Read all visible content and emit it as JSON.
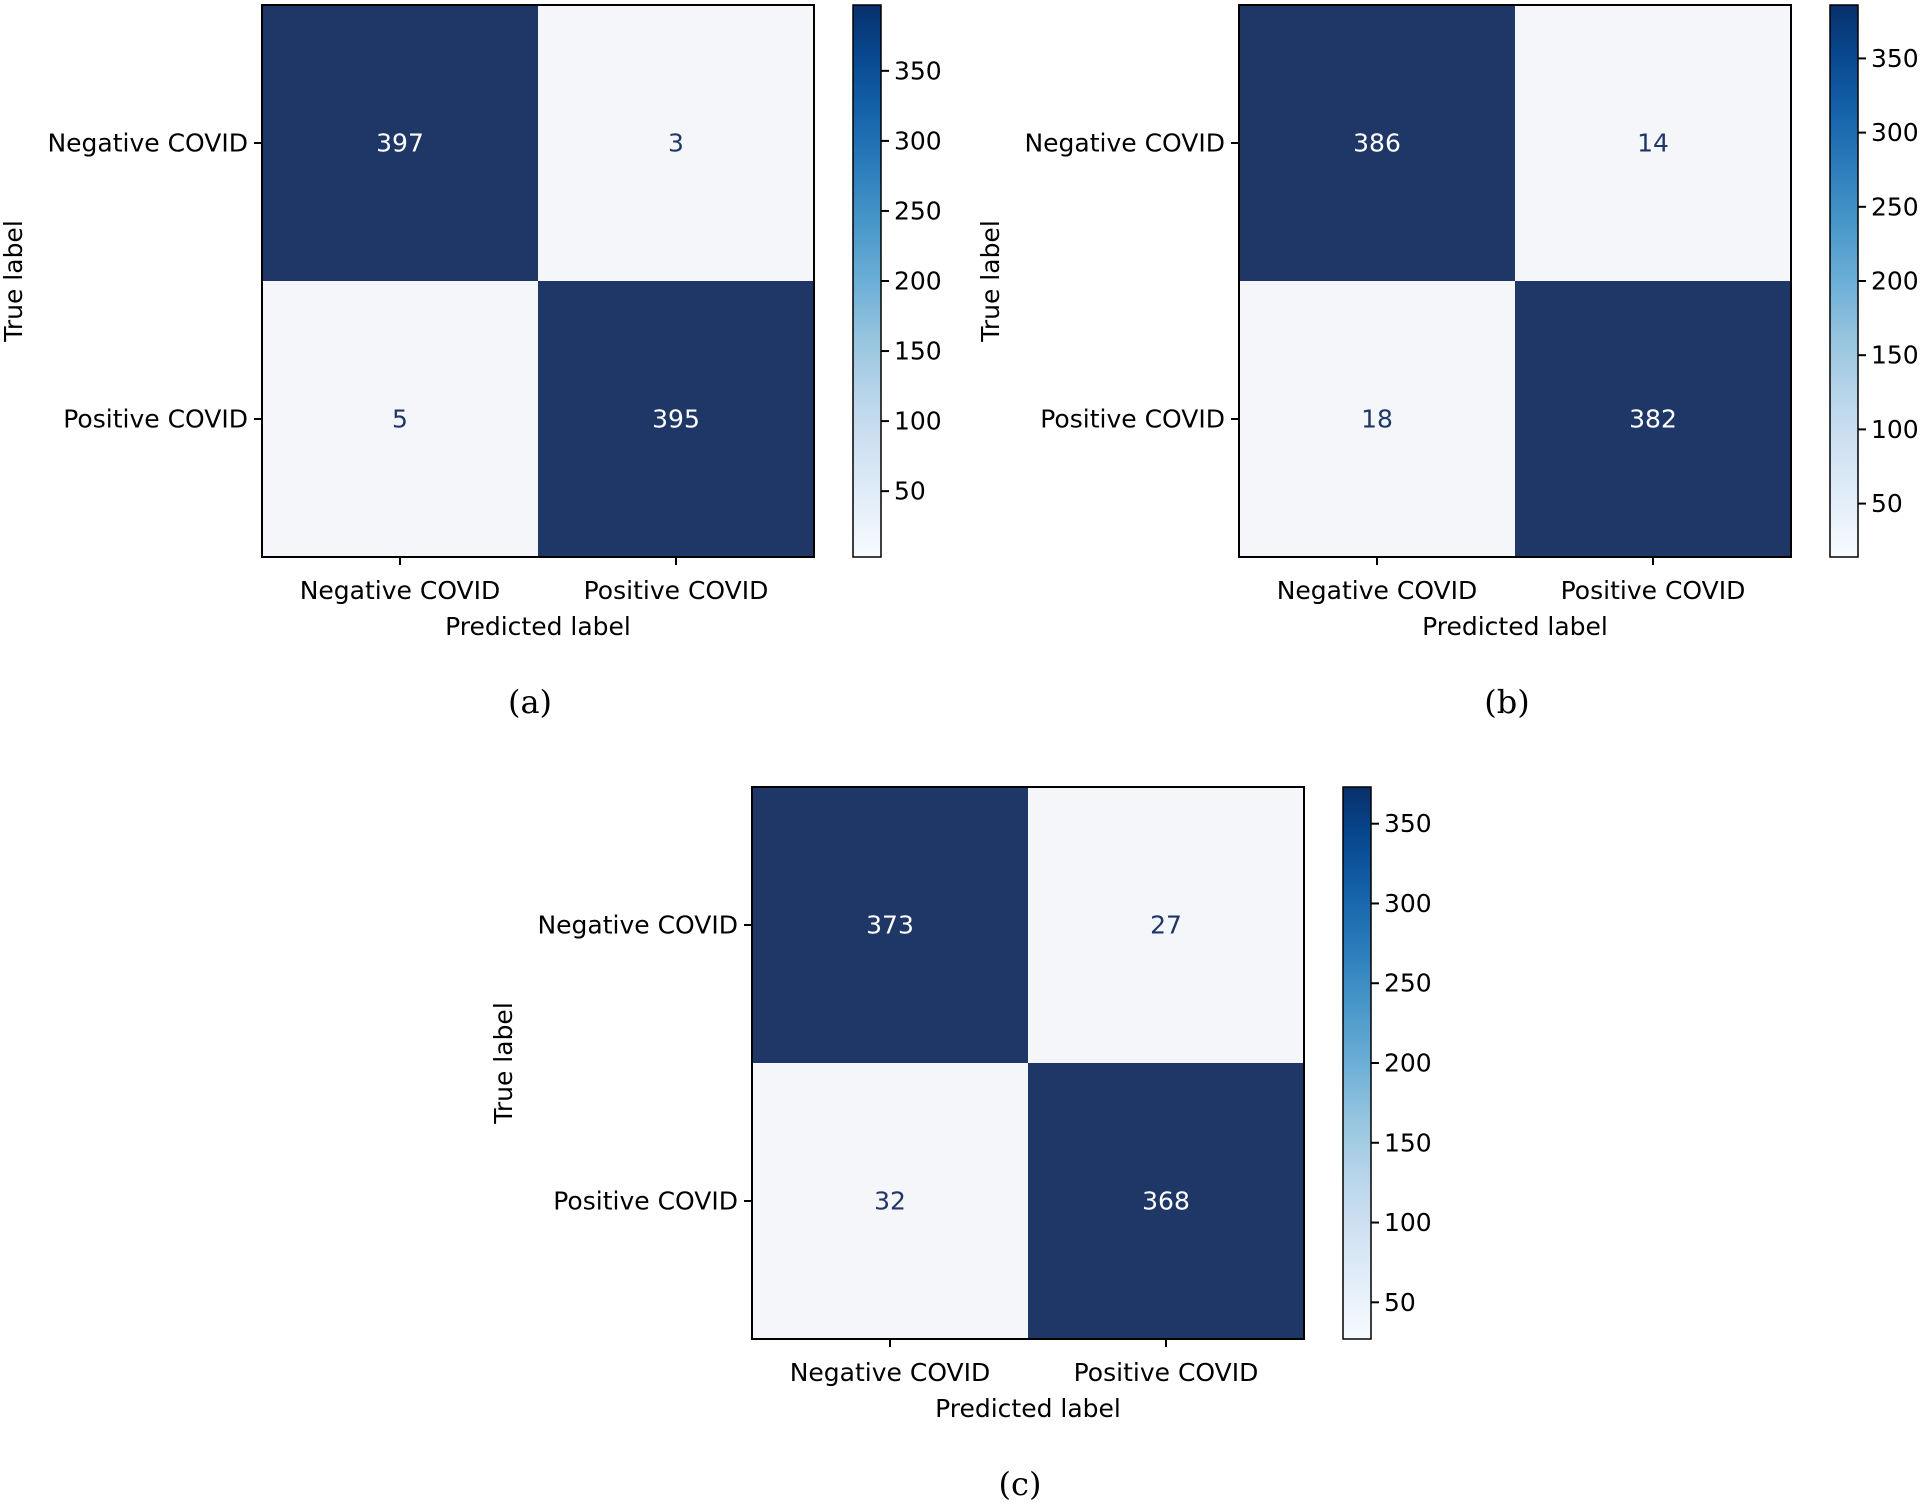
{
  "chart_data": [
    {
      "type": "heatmap",
      "caption": "(a)",
      "ylabel": "True label",
      "xlabel": "Predicted label",
      "row_labels": [
        "Negative COVID",
        "Positive COVID"
      ],
      "col_labels": [
        "Negative COVID",
        "Positive COVID"
      ],
      "matrix": [
        [
          397,
          3
        ],
        [
          5,
          395
        ]
      ],
      "cells": [
        [
          "397",
          "3"
        ],
        [
          "5",
          "395"
        ]
      ],
      "colorbar": {
        "min": 3,
        "max": 397,
        "ticks": [
          50,
          100,
          150,
          200,
          250,
          300,
          350
        ],
        "tick_labels": [
          "50",
          "100",
          "150",
          "200",
          "250",
          "300",
          "350"
        ]
      },
      "colormap": "Blues"
    },
    {
      "type": "heatmap",
      "caption": "(b)",
      "ylabel": "True label",
      "xlabel": "Predicted label",
      "row_labels": [
        "Negative COVID",
        "Positive COVID"
      ],
      "col_labels": [
        "Negative COVID",
        "Positive COVID"
      ],
      "matrix": [
        [
          386,
          14
        ],
        [
          18,
          382
        ]
      ],
      "cells": [
        [
          "386",
          "14"
        ],
        [
          "18",
          "382"
        ]
      ],
      "colorbar": {
        "min": 14,
        "max": 386,
        "ticks": [
          50,
          100,
          150,
          200,
          250,
          300,
          350
        ],
        "tick_labels": [
          "50",
          "100",
          "150",
          "200",
          "250",
          "300",
          "350"
        ]
      },
      "colormap": "Blues"
    },
    {
      "type": "heatmap",
      "caption": "(c)",
      "ylabel": "True label",
      "xlabel": "Predicted label",
      "row_labels": [
        "Negative COVID",
        "Positive COVID"
      ],
      "col_labels": [
        "Negative COVID",
        "Positive COVID"
      ],
      "matrix": [
        [
          373,
          27
        ],
        [
          32,
          368
        ]
      ],
      "cells": [
        [
          "373",
          "27"
        ],
        [
          "32",
          "368"
        ]
      ],
      "colorbar": {
        "min": 27,
        "max": 373,
        "ticks": [
          50,
          100,
          150,
          200,
          250,
          300,
          350
        ],
        "tick_labels": [
          "50",
          "100",
          "150",
          "200",
          "250",
          "300",
          "350"
        ]
      },
      "colormap": "Blues"
    }
  ],
  "colors": {
    "dark_cell": "#1f3767",
    "light_cell": "#f4f6f9",
    "light_cell_text": "#1f3767",
    "dark_cell_text": "#ffffff",
    "axis": "#000000"
  }
}
